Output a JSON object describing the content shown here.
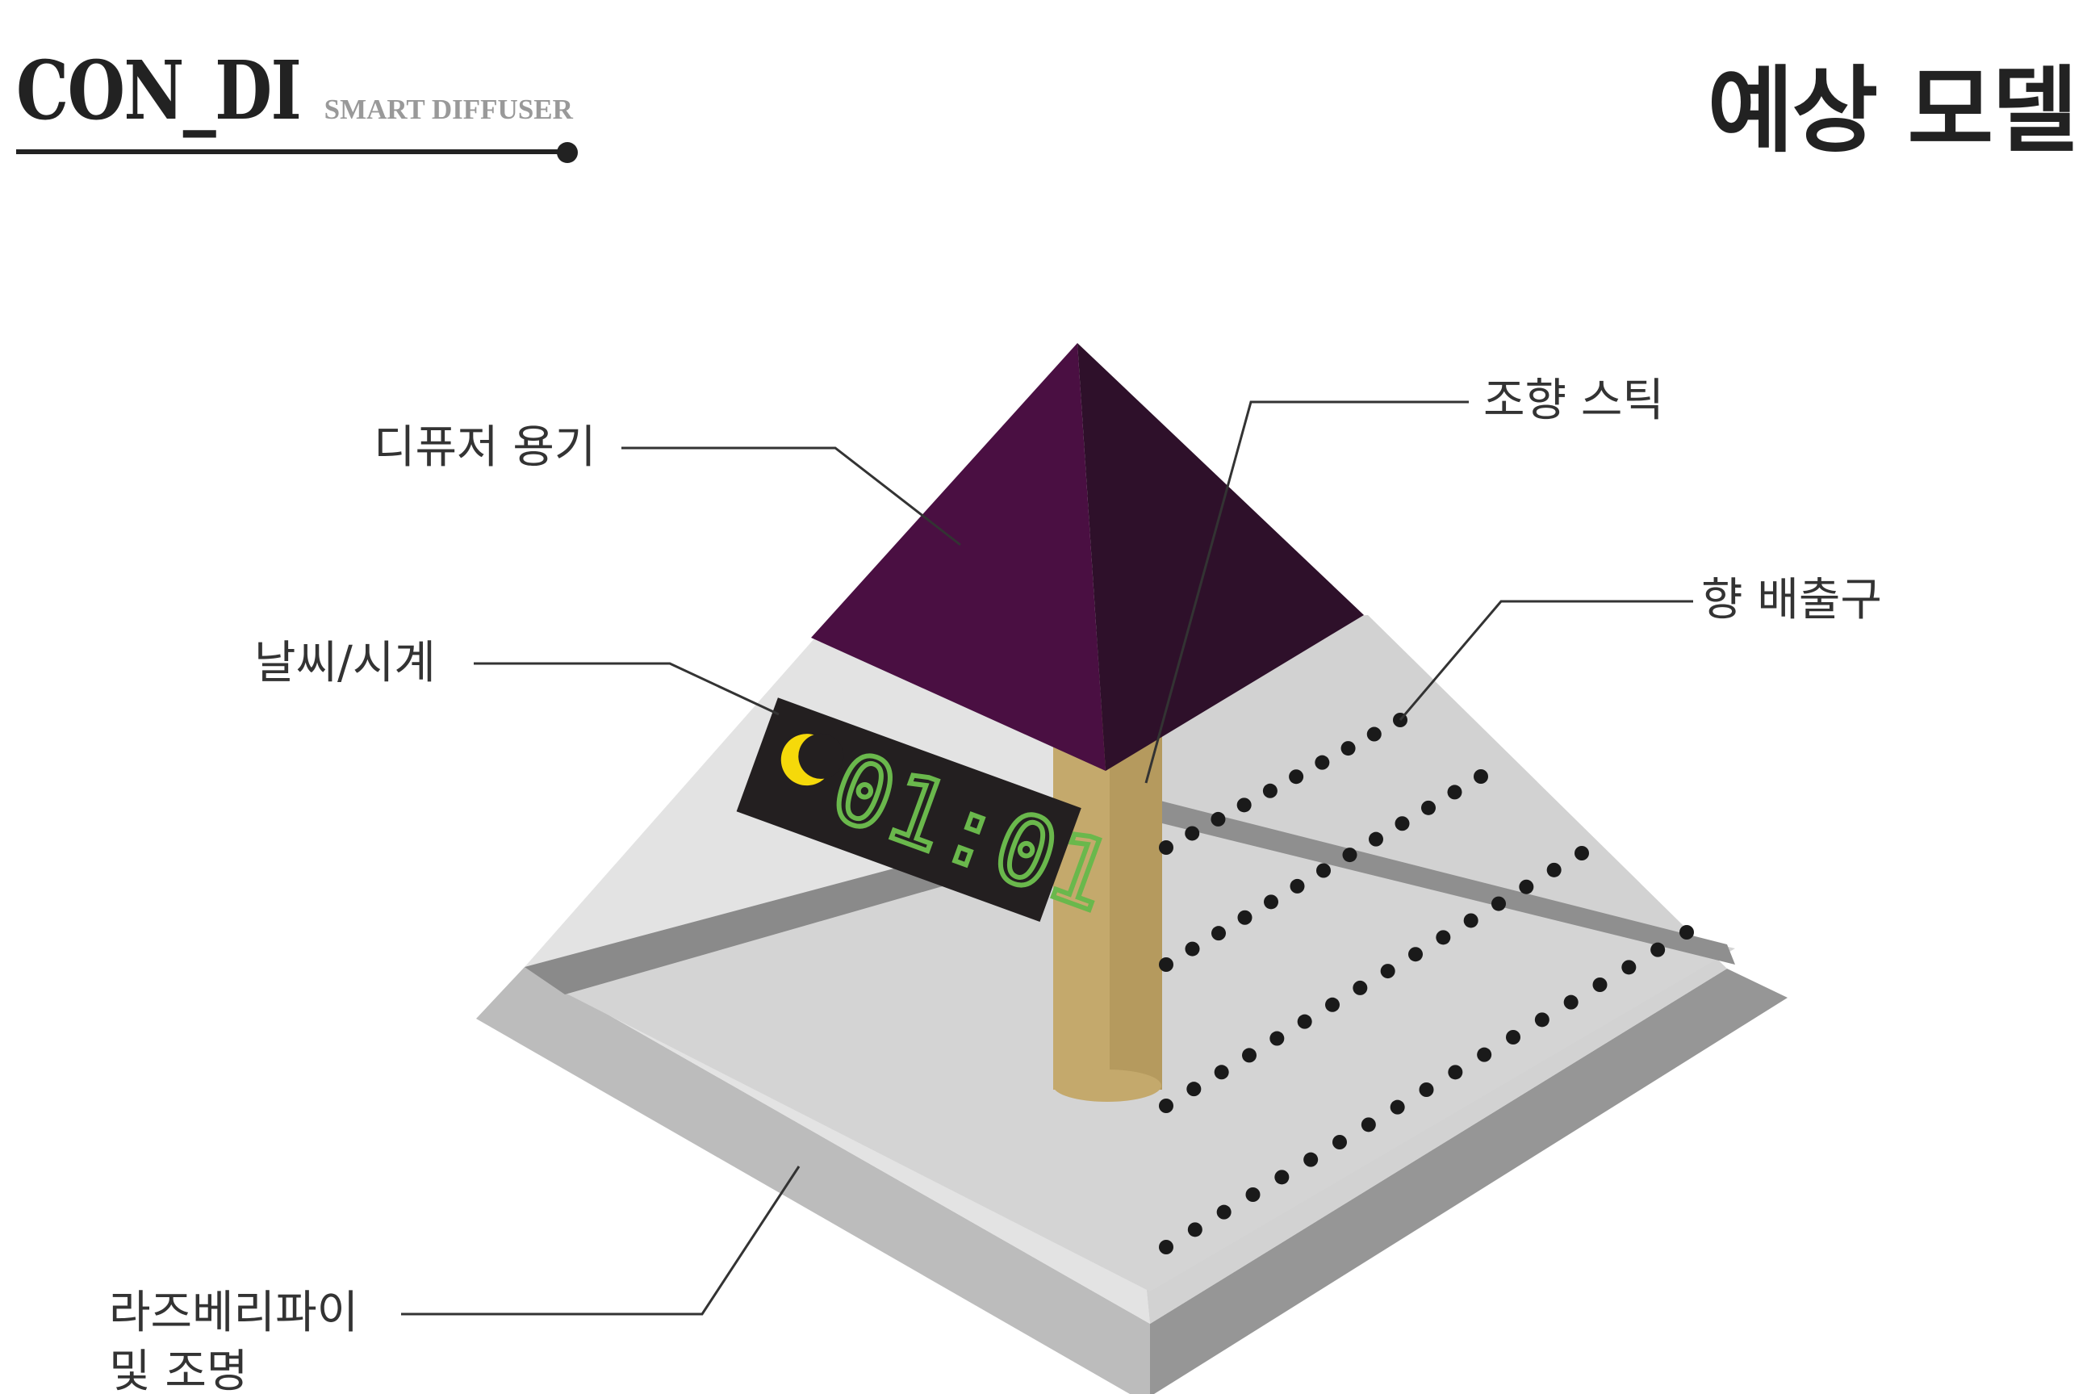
{
  "brand": {
    "name": "CON_DI",
    "subtitle": "SMART DIFFUSER"
  },
  "page_title": "예상 모델",
  "labels": {
    "diffuser_vessel": "디퓨저 용기",
    "weather_clock": "날씨/시계",
    "raspberry_pi_line1": "라즈베리파이",
    "raspberry_pi_line2": "및 조명",
    "scent_stick": "조향 스틱",
    "scent_outlet": "향 배출구"
  },
  "display": {
    "time": "01:01",
    "weather_icon": "crescent-moon-icon",
    "digit_color": "#6ab84c",
    "moon_color": "#f5d90a"
  },
  "colors": {
    "vessel_left": "#4a0f42",
    "vessel_right": "#2e102a",
    "stick": "#c4a96c",
    "base_light": "#e3e3e3",
    "base_mid": "#c8c8c8",
    "base_dark": "#9a9a9a"
  }
}
